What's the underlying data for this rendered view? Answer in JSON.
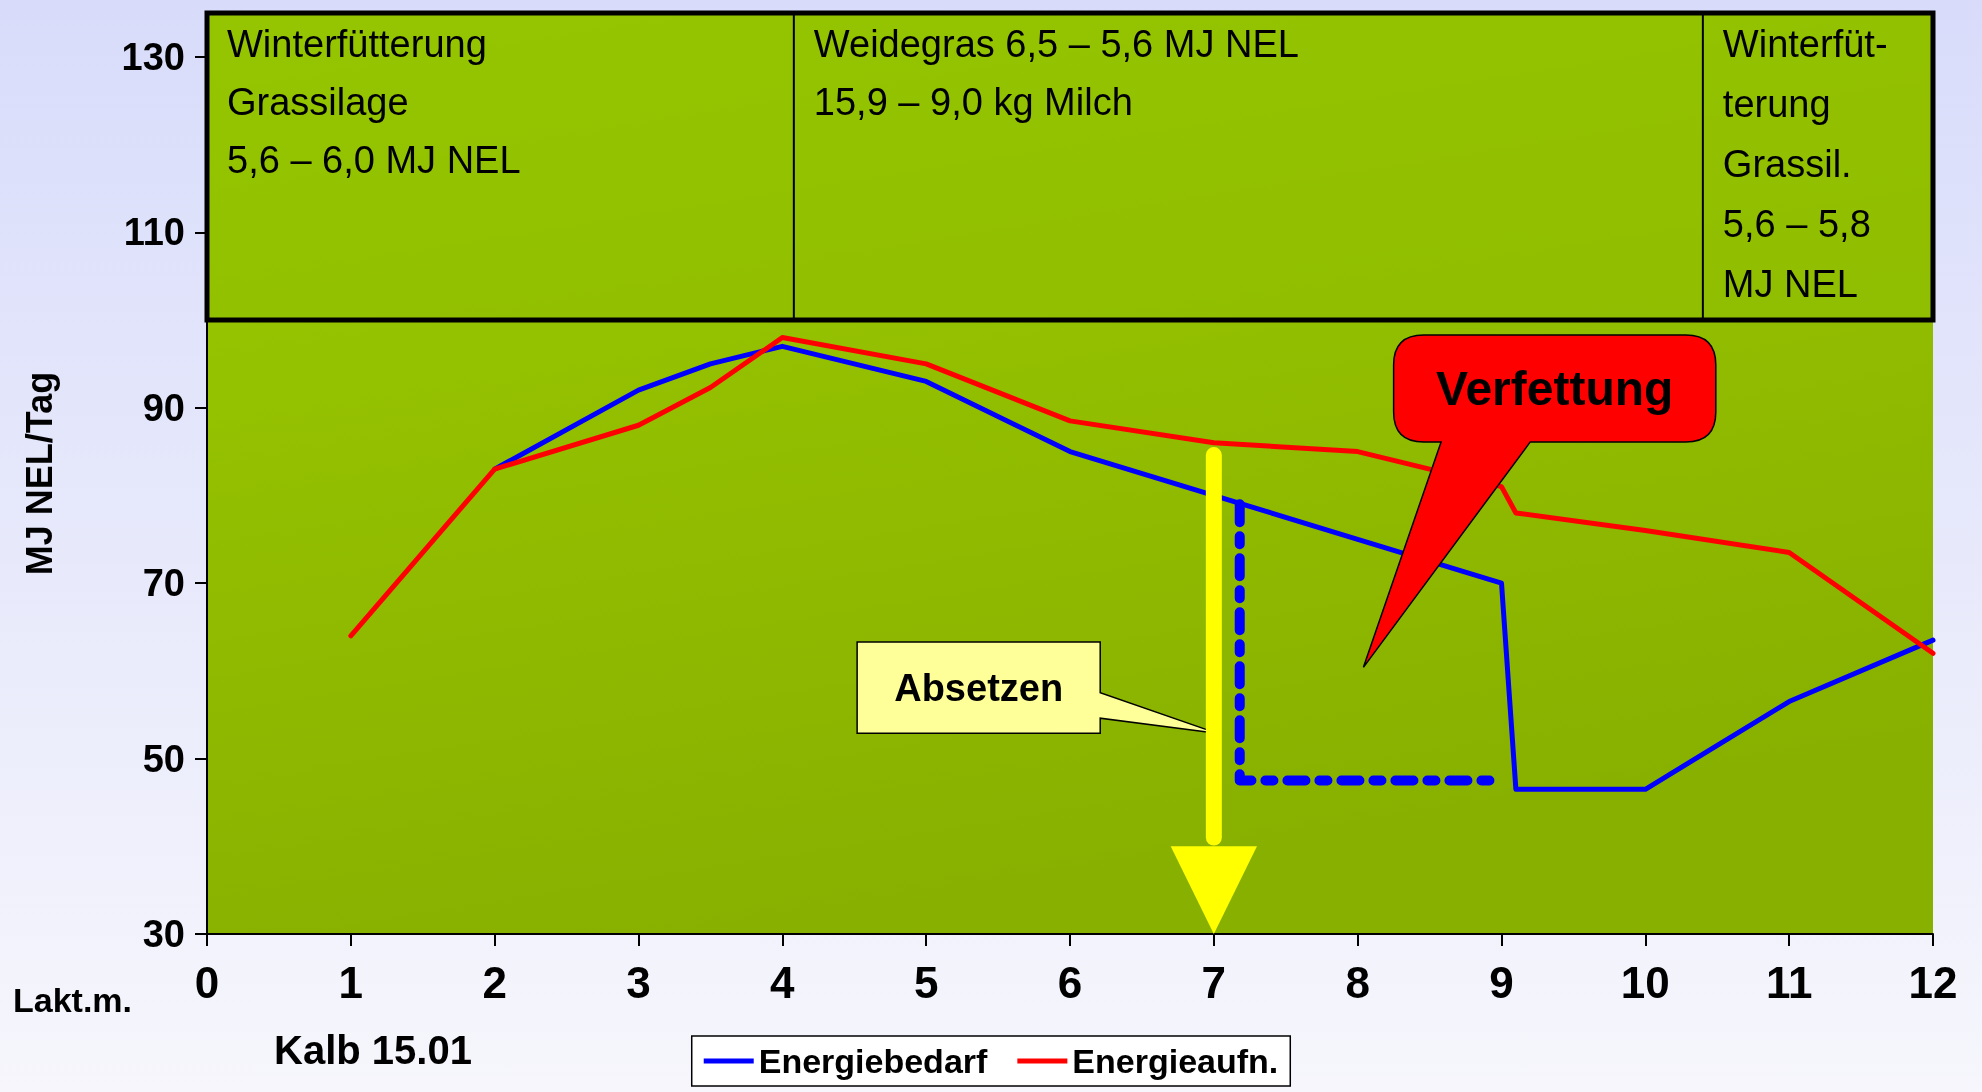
{
  "chart_data": {
    "type": "line",
    "xlabel": "Lakt.m.",
    "ylabel": "MJ NEL/Tag",
    "xlim": [
      0,
      12
    ],
    "xticks": [
      0,
      1,
      2,
      3,
      4,
      5,
      6,
      7,
      8,
      9,
      10,
      11,
      12
    ],
    "ylim": [
      30,
      135
    ],
    "yticks": [
      30,
      50,
      70,
      90,
      110,
      130
    ],
    "grid": false,
    "legend": "bottom",
    "marker": "none",
    "series": [
      {
        "name": "Energiebedarf",
        "color": "#0000ff",
        "x": [
          2,
          3,
          3.5,
          4,
          5,
          6,
          8,
          9,
          9.1,
          10,
          11,
          12
        ],
        "values": [
          83,
          92,
          95,
          97,
          93,
          85,
          75,
          70,
          46.5,
          46.5,
          56.5,
          63.5
        ]
      },
      {
        "name": "Energieaufn.",
        "color": "#ff0000",
        "x": [
          1,
          2,
          3,
          3.5,
          4,
          5,
          6,
          7,
          8,
          9,
          9.1,
          10,
          11,
          12
        ],
        "values": [
          64,
          83,
          88,
          92.3,
          98,
          95,
          88.5,
          86,
          85,
          81,
          78,
          76,
          73.5,
          62
        ]
      },
      {
        "color": "#0000ff",
        "line_style": "dashed",
        "x": [
          7.18,
          7.18,
          9.0
        ],
        "values": [
          79,
          47.5,
          47.5
        ]
      }
    ],
    "annotations": [
      "Winterfütterung\nGrassilage\n5,6 – 6,0 MJ NEL",
      "Weidegras 6,5 – 5,6 MJ NEL\n15,9 – 9,0 kg Milch",
      "Winterfüt-\nterung\nGrassil.\n5,6 – 5,8\nMJ NEL",
      "Verfettung",
      "Absetzen",
      "Kalb 15.01"
    ]
  }
}
